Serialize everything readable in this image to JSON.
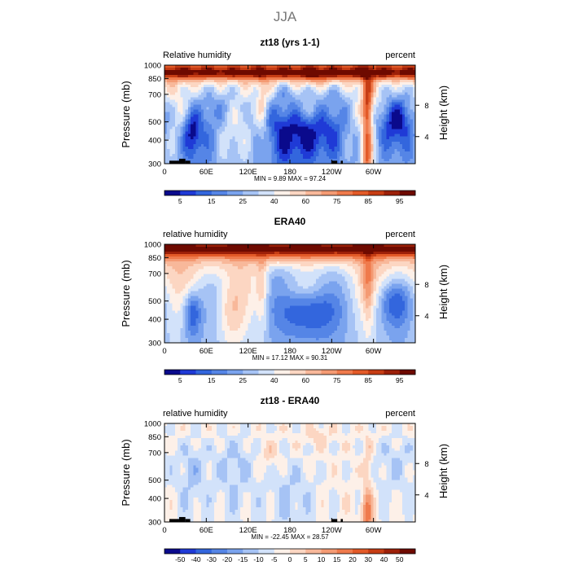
{
  "figure": {
    "season": "JJA"
  },
  "chart_data": [
    {
      "type": "heatmap",
      "title": "zt18 (yrs 1-1)",
      "left_label": "Relative humidity",
      "right_label": "percent",
      "xlabel": "",
      "ylabel": "Pressure (mb)",
      "y2label": "Height (km)",
      "x_ticks": [
        "0",
        "60E",
        "120E",
        "180",
        "120W",
        "60W"
      ],
      "y_ticks": [
        "300",
        "400",
        "500",
        "700",
        "850",
        "1000"
      ],
      "y2_ticks": [
        "8",
        "4"
      ],
      "stats": "MIN =    9.89   MAX =   97.24",
      "colorbar_labels": [
        "5",
        "15",
        "25",
        "40",
        "60",
        "75",
        "85",
        "95"
      ],
      "colorbar_colors": [
        "#0a0a8c",
        "#1f3ad6",
        "#3366dd",
        "#5585e6",
        "#7aa3ee",
        "#a6c3f5",
        "#d2e2fa",
        "#fdf0e8",
        "#fcd6c2",
        "#f8b89a",
        "#f49a73",
        "#ef7a4c",
        "#e35a28",
        "#c63d14",
        "#9c2009",
        "#6e0a00"
      ],
      "range": [
        5,
        95
      ],
      "field": "rh_model",
      "terrain": [
        [
          7,
          21,
          3
        ],
        [
          21,
          30,
          5
        ],
        [
          30,
          37,
          3
        ],
        [
          240,
          248,
          3
        ],
        [
          253,
          256,
          3
        ]
      ]
    },
    {
      "type": "heatmap",
      "title": "ERA40",
      "left_label": "relative humidity",
      "right_label": "percent",
      "xlabel": "",
      "ylabel": "Pressure (mb)",
      "y2label": "Height (km)",
      "x_ticks": [
        "0",
        "60E",
        "120E",
        "180",
        "120W",
        "60W"
      ],
      "y_ticks": [
        "300",
        "400",
        "500",
        "700",
        "850",
        "1000"
      ],
      "y2_ticks": [
        "8",
        "4"
      ],
      "stats": "MIN =   17.12   MAX =   90.31",
      "colorbar_labels": [
        "5",
        "15",
        "25",
        "40",
        "60",
        "75",
        "85",
        "95"
      ],
      "colorbar_colors": [
        "#0a0a8c",
        "#1f3ad6",
        "#3366dd",
        "#5585e6",
        "#7aa3ee",
        "#a6c3f5",
        "#d2e2fa",
        "#fdf0e8",
        "#fcd6c2",
        "#f8b89a",
        "#f49a73",
        "#ef7a4c",
        "#e35a28",
        "#c63d14",
        "#9c2009",
        "#6e0a00"
      ],
      "range": [
        5,
        95
      ],
      "field": "rh_obs",
      "terrain": []
    },
    {
      "type": "heatmap",
      "title": "zt18 - ERA40",
      "left_label": "relative humidity",
      "right_label": "percent",
      "xlabel": "",
      "ylabel": "Pressure (mb)",
      "y2label": "Height (km)",
      "x_ticks": [
        "0",
        "60E",
        "120E",
        "180",
        "120W",
        "60W"
      ],
      "y_ticks": [
        "300",
        "400",
        "500",
        "700",
        "850",
        "1000"
      ],
      "y2_ticks": [
        "8",
        "4"
      ],
      "stats": "MIN =  -22.45   MAX =   28.57",
      "colorbar_labels": [
        "-50",
        "-40",
        "-30",
        "-20",
        "-15",
        "-10",
        "-5",
        "0",
        "5",
        "10",
        "15",
        "20",
        "30",
        "40",
        "50"
      ],
      "colorbar_colors": [
        "#0a0a8c",
        "#1f3ad6",
        "#3366dd",
        "#5585e6",
        "#7aa3ee",
        "#a6c3f5",
        "#d2e2fa",
        "#fdf0e8",
        "#fcd6c2",
        "#f8b89a",
        "#f49a73",
        "#ef7a4c",
        "#e35a28",
        "#c63d14",
        "#9c2009",
        "#6e0a00"
      ],
      "range": [
        -50,
        50
      ],
      "field": "rh_diff",
      "terrain": [
        [
          7,
          21,
          3
        ],
        [
          21,
          30,
          5
        ],
        [
          30,
          37,
          3
        ],
        [
          240,
          248,
          3
        ],
        [
          253,
          256,
          3
        ]
      ]
    }
  ]
}
